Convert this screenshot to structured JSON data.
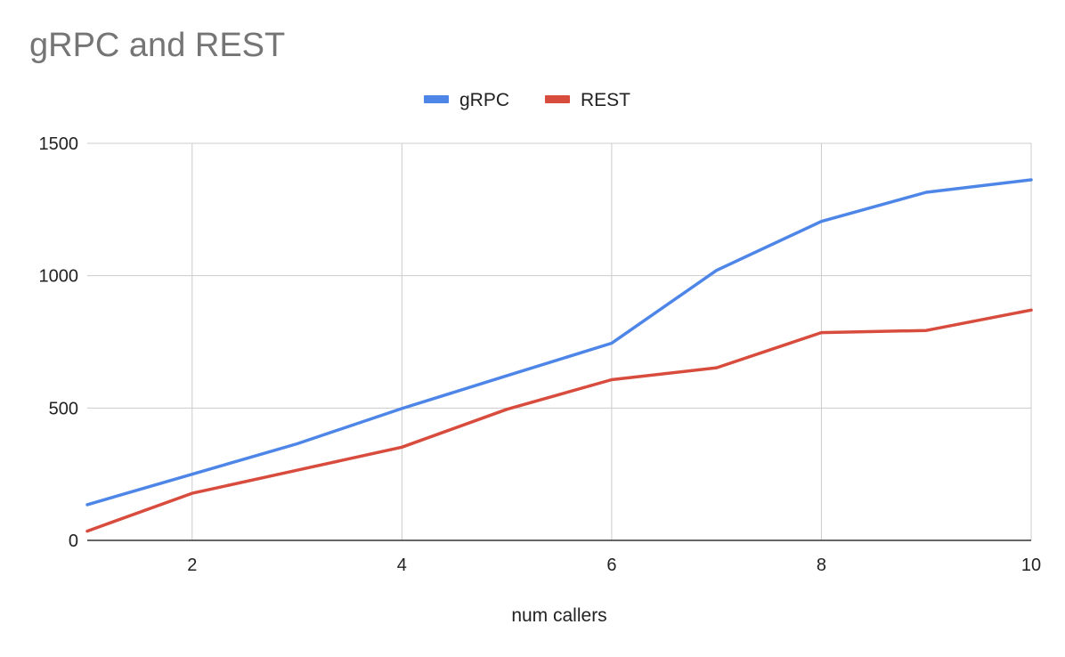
{
  "chart_data": {
    "type": "line",
    "title": "gRPC and REST",
    "xlabel": "num callers",
    "ylabel": "",
    "xlim": [
      1,
      10
    ],
    "ylim": [
      0,
      1500
    ],
    "xticks": [
      2,
      4,
      6,
      8,
      10
    ],
    "yticks": [
      0,
      500,
      1000,
      1500
    ],
    "grid": true,
    "legend_position": "top-center",
    "x": [
      1,
      2,
      3,
      4,
      5,
      6,
      7,
      8,
      9,
      10
    ],
    "series": [
      {
        "name": "gRPC",
        "color": "#4e86e8",
        "values": [
          135,
          250,
          365,
          498,
          622,
          745,
          1020,
          1205,
          1315,
          1362
        ]
      },
      {
        "name": "REST",
        "color": "#d84c3e",
        "values": [
          35,
          178,
          265,
          352,
          495,
          607,
          652,
          785,
          793,
          870
        ]
      }
    ]
  }
}
